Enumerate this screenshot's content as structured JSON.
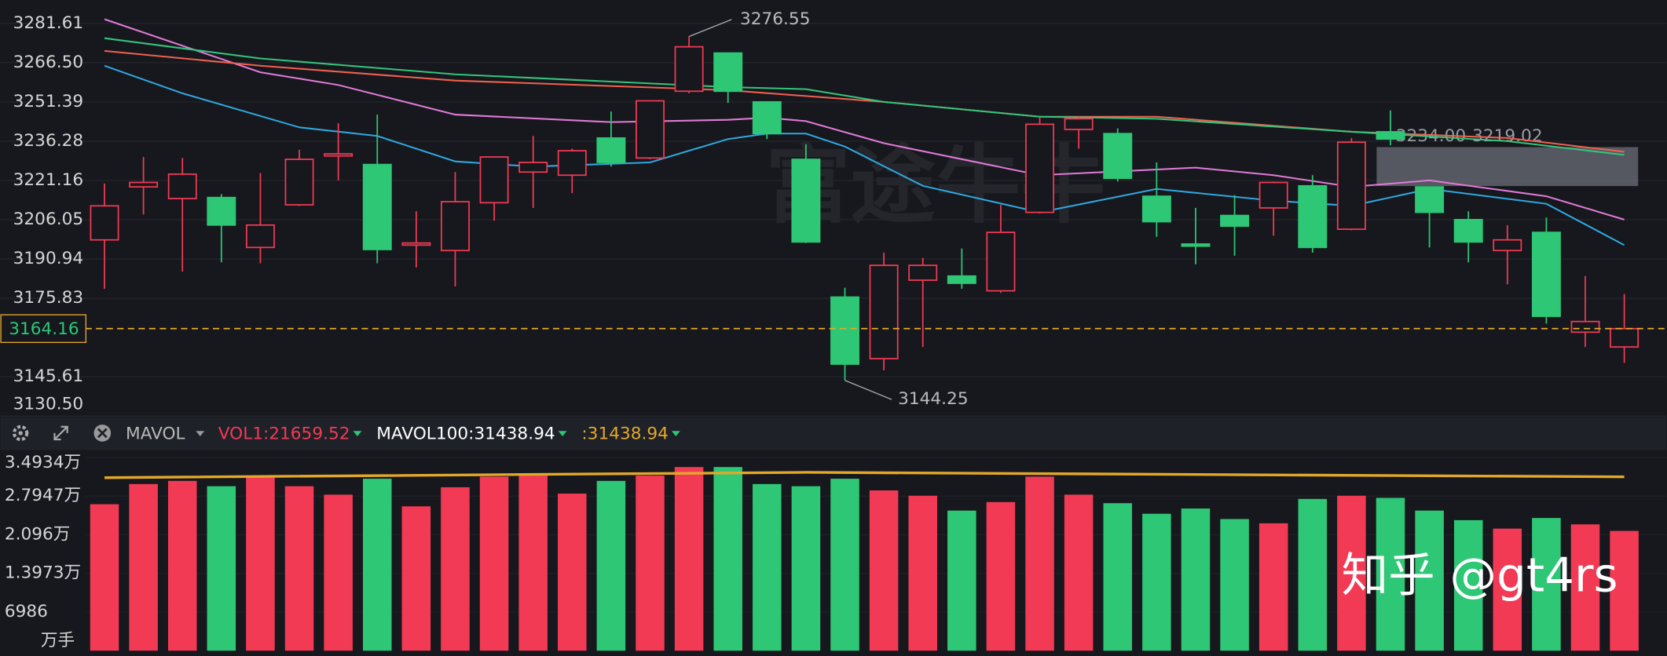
{
  "chart_data": [
    {
      "type": "candlestick",
      "open": [
        3198.3,
        3218.7,
        3214.2,
        3214.6,
        3195.4,
        3211.8,
        3230.6,
        3227.3,
        3196.3,
        3194.2,
        3212.6,
        3224.4,
        3223.2,
        3237.5,
        3229.8,
        3255.5,
        3270.2,
        3251.4,
        3229.3,
        3176.3,
        3152.6,
        3182.8,
        3184.4,
        3178.7,
        3208.9,
        3240.8,
        3239.2,
        3215.1,
        3196.7,
        3207.7,
        3210.6,
        3219.1,
        3202.4,
        3239.9,
        3218.7,
        3206.1,
        3194.2,
        3201.2,
        3162.8,
        3157.1
      ],
      "high": [
        3220.0,
        3230.2,
        3229.8,
        3215.9,
        3224.0,
        3233.0,
        3243.2,
        3246.5,
        3209.3,
        3224.4,
        3230.2,
        3238.3,
        3233.4,
        3247.7,
        3251.8,
        3276.55,
        3270.2,
        3251.4,
        3235.1,
        3179.9,
        3193.4,
        3191.4,
        3195.0,
        3211.8,
        3245.3,
        3245.7,
        3241.2,
        3228.1,
        3210.6,
        3215.5,
        3220.8,
        3223.2,
        3237.5,
        3248.1,
        3218.7,
        3209.3,
        3204.0,
        3206.9,
        3184.4,
        3177.5
      ],
      "low": [
        3179.5,
        3208.1,
        3186.1,
        3189.7,
        3189.3,
        3211.4,
        3221.2,
        3189.3,
        3187.7,
        3180.4,
        3205.7,
        3210.6,
        3216.3,
        3226.5,
        3229.3,
        3254.7,
        3251.0,
        3237.1,
        3197.1,
        3144.25,
        3148.1,
        3157.1,
        3179.5,
        3177.9,
        3208.5,
        3233.4,
        3220.8,
        3199.5,
        3188.9,
        3192.2,
        3199.9,
        3193.4,
        3202.0,
        3234.7,
        3195.4,
        3189.7,
        3181.2,
        3166.1,
        3157.1,
        3151.0
      ],
      "close": [
        3211.4,
        3220.4,
        3223.6,
        3204.0,
        3204.0,
        3229.3,
        3231.4,
        3194.6,
        3197.1,
        3213.0,
        3230.2,
        3228.1,
        3232.6,
        3228.1,
        3251.8,
        3272.6,
        3255.5,
        3239.2,
        3197.5,
        3150.5,
        3188.5,
        3188.5,
        3181.6,
        3201.2,
        3242.8,
        3244.9,
        3222.0,
        3205.3,
        3195.9,
        3203.6,
        3220.4,
        3195.4,
        3235.9,
        3237.1,
        3208.9,
        3197.5,
        3198.3,
        3168.9,
        3166.9,
        3164.16
      ],
      "up_color": "#f23a55",
      "down_color": "#2dc775",
      "ylim": [
        3130.5,
        3290.6
      ],
      "yticks": [
        3281.61,
        {
          "value": 3266.5,
          "label": "3266.50"
        },
        3251.39,
        3236.28,
        3221.16,
        3206.05,
        3190.94,
        3175.83,
        3145.61,
        {
          "value": 3130.5,
          "label": "3130.50"
        }
      ],
      "grid": true,
      "series": [
        {
          "color": "#2fa8e0",
          "x": [
            0,
            2,
            5,
            7,
            9,
            11,
            14,
            16,
            17,
            18,
            19,
            21,
            24,
            27,
            30,
            32,
            34,
            37,
            39
          ],
          "values": [
            3265.3,
            3254.7,
            3241.6,
            3238.3,
            3228.5,
            3226.5,
            3228.1,
            3237.1,
            3239.2,
            3239.2,
            3234.2,
            3219.1,
            3208.9,
            3217.9,
            3213.4,
            3211.4,
            3217.9,
            3212.2,
            3196.3
          ]
        },
        {
          "color": "#e27ad8",
          "x": [
            0,
            4,
            6,
            9,
            13,
            16,
            17,
            18,
            20,
            24,
            28,
            30,
            32,
            34,
            37,
            39
          ],
          "values": [
            3283.2,
            3262.8,
            3257.9,
            3246.5,
            3243.6,
            3244.5,
            3245.3,
            3244.0,
            3235.5,
            3223.2,
            3226.1,
            3223.2,
            3218.7,
            3221.2,
            3215.1,
            3206.1
          ]
        },
        {
          "color": "#f0614f",
          "x": [
            0,
            4,
            9,
            16,
            20,
            24,
            27,
            32,
            36,
            39
          ],
          "values": [
            3271.0,
            3265.3,
            3259.6,
            3255.9,
            3251.4,
            3245.7,
            3245.7,
            3239.9,
            3237.5,
            3232.2
          ]
        },
        {
          "color": "#34c47c",
          "x": [
            0,
            4,
            9,
            16,
            18,
            20,
            24,
            27,
            32,
            36,
            39
          ],
          "values": [
            3275.9,
            3268.1,
            3262.0,
            3257.1,
            3256.3,
            3251.4,
            3245.7,
            3244.9,
            3239.9,
            3236.3,
            3231.0
          ]
        }
      ],
      "current_price": 3164.16,
      "current_price_color": "#e3a82a",
      "range_box": {
        "top": {
          "value": 3234,
          "label": "3234.00"
        },
        "bottom": 3219.02,
        "start": 33
      },
      "watermark": "富途牛牛"
    },
    {
      "type": "bar",
      "indicator": "MAVOL",
      "indicator_labels": [
        {
          "text": "VOL1:21659.52",
          "color": "#f23a55"
        },
        {
          "text": "MAVOL100:31438.94",
          "color": "#ffffff"
        },
        {
          "text": ":31438.94",
          "color": "#e3a82a"
        }
      ],
      "values": [
        26480,
        30130,
        30700,
        29740,
        31470,
        29740,
        28210,
        31090,
        26100,
        29550,
        31470,
        31660,
        28400,
        30700,
        31660,
        33200,
        33200,
        30130,
        29740,
        31090,
        28980,
        28020,
        25330,
        26870,
        31470,
        28210,
        26670,
        24760,
        25710,
        23800,
        23030,
        27440,
        28020,
        27630,
        25330,
        23600,
        22070,
        23990,
        22840,
        21659.52
      ],
      "ylim": [
        0,
        36080
      ],
      "yticks": [
        {
          "value": 34934,
          "label": "3.4934万"
        },
        {
          "value": 27947,
          "label": "2.7947万"
        },
        {
          "value": 20960,
          "label": "2.096万"
        },
        {
          "value": 13973,
          "label": "1.3973万"
        },
        6986
      ],
      "unit_label": "万手",
      "series": [
        {
          "color": "#e3a82a",
          "x": [
            0,
            18,
            39
          ],
          "values": [
            31280,
            32240,
            31438.94
          ]
        }
      ]
    }
  ],
  "watermark": "知乎 @gt4rs"
}
